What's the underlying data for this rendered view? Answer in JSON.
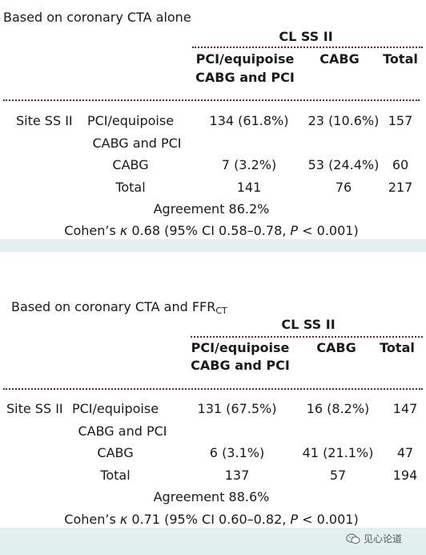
{
  "tables": [
    {
      "heading": "Based on coronary CTA alone",
      "heading_sub": "",
      "group_header": "CL SS II",
      "col_headers": [
        "PCI/equipoise\nCABG and PCI",
        "CABG",
        "Total"
      ],
      "col_header_pci_line1": "PCI/equipoise",
      "col_header_pci_line2": "CABG and PCI",
      "row_group_label": "Site SS II",
      "rows": [
        {
          "label": "PCI/equipoise",
          "label2": "CABG and PCI",
          "v1": "134 (61.8%)",
          "v2": "23 (10.6%)",
          "total": "157"
        },
        {
          "label": "CABG",
          "label2": "",
          "v1": "7 (3.2%)",
          "v2": "53 (24.4%)",
          "total": "60"
        },
        {
          "label": "Total",
          "label2": "",
          "v1": "141",
          "v2": "76",
          "total": "217"
        }
      ],
      "agreement": "Agreement 86.2%",
      "kappa_prefix": "Cohen’s ",
      "kappa_symbol": "κ",
      "kappa_middle": " 0.68 (95% CI 0.58–0.78, ",
      "kappa_p": "P",
      "kappa_suffix": " < 0.001)"
    },
    {
      "heading": "Based on coronary CTA and FFR",
      "heading_sub": "CT",
      "group_header": "CL SS II",
      "col_headers": [
        "PCI/equipoise\nCABG and PCI",
        "CABG",
        "Total"
      ],
      "col_header_pci_line1": "PCI/equipoise",
      "col_header_pci_line2": "CABG and PCI",
      "row_group_label": "Site SS II",
      "rows": [
        {
          "label": "PCI/equipoise",
          "label2": "CABG and PCI",
          "v1": "131 (67.5%)",
          "v2": "16 (8.2%)",
          "total": "147"
        },
        {
          "label": "CABG",
          "label2": "",
          "v1": "6 (3.1%)",
          "v2": "41 (21.1%)",
          "total": "47"
        },
        {
          "label": "Total",
          "label2": "",
          "v1": "137",
          "v2": "57",
          "total": "194"
        }
      ],
      "agreement": "Agreement 88.6%",
      "kappa_prefix": "Cohen’s ",
      "kappa_symbol": "κ",
      "kappa_middle": " 0.71 (95% CI 0.60–0.82, ",
      "kappa_p": "P",
      "kappa_suffix": " < 0.001)"
    }
  ],
  "watermark": {
    "text": "见心论道",
    "icon": "wechat-icon"
  },
  "colors": {
    "dotted_rule": "#a8102a",
    "band": "#e2f1ee"
  }
}
